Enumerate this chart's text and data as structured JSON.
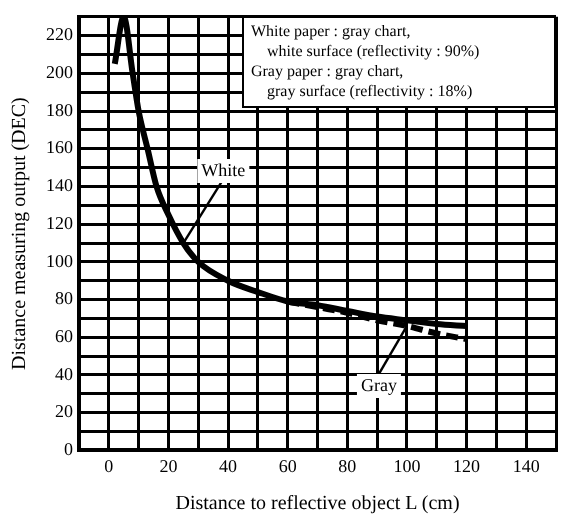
{
  "chart_data": {
    "type": "line",
    "xlabel": "Distance to reflective object L (cm)",
    "ylabel": "Distance measuring output (DEC)",
    "xlim": [
      -10,
      150
    ],
    "xticks": [
      0,
      20,
      40,
      60,
      80,
      100,
      120,
      140
    ],
    "ylim": [
      0,
      230
    ],
    "yticks": [
      0,
      20,
      40,
      60,
      80,
      100,
      120,
      140,
      160,
      180,
      200,
      220
    ],
    "grid": true,
    "series": [
      {
        "name": "White",
        "color": "#000000",
        "line_style": "solid",
        "x": [
          2,
          5,
          8,
          10,
          13,
          16,
          20,
          25,
          30,
          40,
          50,
          60,
          70,
          80,
          90,
          100,
          110,
          120
        ],
        "values": [
          205,
          230,
          200,
          180,
          160,
          140,
          125,
          110,
          100,
          90,
          84,
          79,
          77,
          74,
          71,
          69,
          67,
          66
        ]
      },
      {
        "name": "Gray",
        "color": "#000000",
        "line_style": "dashed",
        "x": [
          60,
          70,
          80,
          90,
          100,
          110,
          120
        ],
        "values": [
          79,
          76,
          73,
          69,
          66,
          62,
          59
        ]
      }
    ],
    "annotations": [
      "White paper : gray chart, white surface (reflectivity : 90%)",
      "Gray paper : gray chart, gray surface (reflectivity : 18%)"
    ]
  }
}
